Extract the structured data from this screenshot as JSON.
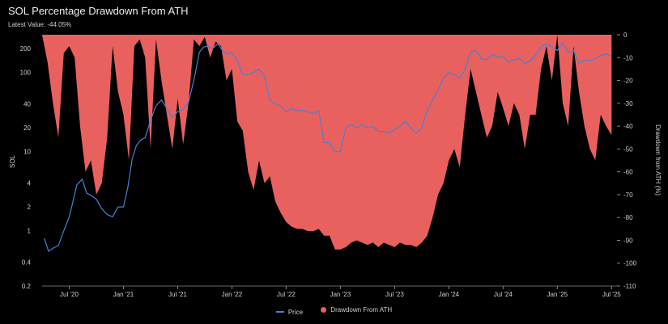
{
  "header": {
    "title": "SOL Percentage Drawdown From ATH",
    "latest_value": "Latest Value: -44.05%"
  },
  "colors": {
    "price": "#4a7fd4",
    "drawdown": "#e8615f",
    "background": "#000000"
  },
  "chart_data": {
    "type": "area",
    "title": "SOL Percentage Drawdown From ATH",
    "subtitle": "Latest Value: -44.05%",
    "x_tick_labels": [
      "Jul '20",
      "Jan '21",
      "Jul '21",
      "Jan '22",
      "Jul '22",
      "Jan '23",
      "Jul '23",
      "Jan '24",
      "Jul '24",
      "Jan '25",
      "Jul '25"
    ],
    "x_ticks": [
      2020.5,
      2021.0,
      2021.5,
      2022.0,
      2022.5,
      2023.0,
      2023.5,
      2024.0,
      2024.5,
      2025.0,
      2025.5
    ],
    "x_range": [
      2020.25,
      2025.55
    ],
    "y_left": {
      "label": "SOL",
      "scale": "log",
      "range": [
        0.2,
        300
      ],
      "tick_labels": [
        "0.2",
        "0.4",
        "1",
        "2",
        "4",
        "10",
        "20",
        "40",
        "100",
        "200"
      ],
      "ticks": [
        0.2,
        0.4,
        1,
        2,
        4,
        10,
        20,
        40,
        100,
        200
      ]
    },
    "y_right": {
      "label": "Drawdown from ATH (%)",
      "range": [
        -110,
        0
      ],
      "tick_labels": [
        "0",
        "-10",
        "-20",
        "-30",
        "-40",
        "-50",
        "-60",
        "-70",
        "-80",
        "-90",
        "-100",
        "-110"
      ],
      "ticks": [
        0,
        -10,
        -20,
        -30,
        -40,
        -50,
        -60,
        -70,
        -80,
        -90,
        -100,
        -110
      ]
    },
    "series": [
      {
        "name": "Price",
        "axis": "left",
        "type": "line",
        "x": [
          2020.27,
          2020.31,
          2020.35,
          2020.4,
          2020.45,
          2020.5,
          2020.53,
          2020.57,
          2020.62,
          2020.66,
          2020.7,
          2020.75,
          2020.8,
          2020.85,
          2020.9,
          2020.95,
          2021.0,
          2021.04,
          2021.08,
          2021.12,
          2021.16,
          2021.2,
          2021.25,
          2021.3,
          2021.35,
          2021.4,
          2021.45,
          2021.5,
          2021.55,
          2021.6,
          2021.65,
          2021.7,
          2021.74,
          2021.78,
          2021.82,
          2021.87,
          2021.92,
          2021.97,
          2022.0,
          2022.05,
          2022.1,
          2022.15,
          2022.2,
          2022.25,
          2022.3,
          2022.35,
          2022.4,
          2022.45,
          2022.5,
          2022.55,
          2022.6,
          2022.65,
          2022.7,
          2022.75,
          2022.8,
          2022.85,
          2022.9,
          2022.95,
          2023.0,
          2023.05,
          2023.1,
          2023.15,
          2023.2,
          2023.25,
          2023.3,
          2023.35,
          2023.4,
          2023.45,
          2023.5,
          2023.55,
          2023.6,
          2023.65,
          2023.7,
          2023.75,
          2023.8,
          2023.85,
          2023.9,
          2023.95,
          2024.0,
          2024.05,
          2024.1,
          2024.15,
          2024.2,
          2024.25,
          2024.3,
          2024.35,
          2024.4,
          2024.45,
          2024.5,
          2024.55,
          2024.6,
          2024.65,
          2024.7,
          2024.75,
          2024.8,
          2024.85,
          2024.9,
          2024.95,
          2025.0,
          2025.05,
          2025.1,
          2025.15,
          2025.2,
          2025.25,
          2025.3,
          2025.35,
          2025.4,
          2025.45,
          2025.5
        ],
        "values": [
          0.8,
          0.55,
          0.6,
          0.65,
          1.0,
          1.5,
          2.2,
          3.8,
          4.5,
          3.0,
          2.8,
          2.5,
          1.9,
          1.6,
          1.5,
          2.0,
          2.0,
          3.5,
          8.0,
          12,
          14,
          15,
          25,
          38,
          45,
          35,
          27,
          32,
          34,
          42,
          80,
          180,
          210,
          215,
          200,
          230,
          185,
          170,
          180,
          140,
          95,
          95,
          100,
          110,
          90,
          45,
          40,
          38,
          32,
          35,
          33,
          33,
          32,
          30,
          33,
          13,
          13,
          10,
          10,
          20,
          22,
          20,
          22,
          20,
          21,
          18,
          18,
          17,
          19,
          21,
          24,
          20,
          17,
          20,
          33,
          45,
          60,
          85,
          100,
          95,
          85,
          110,
          180,
          190,
          150,
          145,
          170,
          155,
          160,
          135,
          145,
          150,
          130,
          140,
          165,
          210,
          230,
          210,
          190,
          240,
          180,
          190,
          130,
          145,
          140,
          150,
          165,
          170,
          160
        ]
      },
      {
        "name": "Drawdown From ATH",
        "axis": "right",
        "type": "area",
        "x": [
          2020.25,
          2020.3,
          2020.35,
          2020.4,
          2020.45,
          2020.5,
          2020.55,
          2020.6,
          2020.65,
          2020.7,
          2020.75,
          2020.8,
          2020.85,
          2020.9,
          2020.95,
          2021.0,
          2021.05,
          2021.1,
          2021.15,
          2021.2,
          2021.25,
          2021.3,
          2021.35,
          2021.4,
          2021.45,
          2021.5,
          2021.55,
          2021.6,
          2021.65,
          2021.7,
          2021.75,
          2021.8,
          2021.85,
          2021.9,
          2021.95,
          2022.0,
          2022.05,
          2022.1,
          2022.15,
          2022.2,
          2022.25,
          2022.3,
          2022.35,
          2022.4,
          2022.45,
          2022.5,
          2022.55,
          2022.6,
          2022.65,
          2022.7,
          2022.75,
          2022.8,
          2022.85,
          2022.9,
          2022.95,
          2023.0,
          2023.05,
          2023.1,
          2023.15,
          2023.2,
          2023.25,
          2023.3,
          2023.35,
          2023.4,
          2023.45,
          2023.5,
          2023.55,
          2023.6,
          2023.65,
          2023.7,
          2023.75,
          2023.8,
          2023.85,
          2023.9,
          2023.95,
          2024.0,
          2024.05,
          2024.1,
          2024.15,
          2024.2,
          2024.25,
          2024.3,
          2024.35,
          2024.4,
          2024.45,
          2024.5,
          2024.55,
          2024.6,
          2024.65,
          2024.7,
          2024.75,
          2024.8,
          2024.85,
          2024.9,
          2024.95,
          2025.0,
          2025.05,
          2025.1,
          2025.15,
          2025.2,
          2025.25,
          2025.3,
          2025.35,
          2025.4,
          2025.45,
          2025.5
        ],
        "values": [
          0,
          -12,
          -30,
          -45,
          -8,
          -5,
          -10,
          -40,
          -60,
          -55,
          -70,
          -65,
          -45,
          -5,
          -25,
          -35,
          -55,
          -5,
          -2,
          -10,
          -50,
          -2,
          -20,
          -35,
          -50,
          -28,
          -48,
          -30,
          -2,
          -5,
          -1,
          -10,
          -3,
          -5,
          -20,
          -15,
          -38,
          -42,
          -60,
          -68,
          -55,
          -65,
          -62,
          -73,
          -78,
          -82,
          -84,
          -85,
          -85,
          -86,
          -86,
          -85,
          -88,
          -88,
          -94,
          -94,
          -93,
          -91,
          -90,
          -91,
          -92,
          -91,
          -93,
          -91,
          -92,
          -93,
          -91,
          -92,
          -92,
          -93,
          -91,
          -88,
          -80,
          -70,
          -65,
          -55,
          -50,
          -58,
          -35,
          -15,
          -25,
          -35,
          -45,
          -40,
          -25,
          -32,
          -40,
          -30,
          -35,
          -50,
          -35,
          -35,
          -15,
          -5,
          -20,
          0,
          -30,
          -40,
          -5,
          -25,
          -40,
          -50,
          -55,
          -35,
          -40,
          -44
        ]
      }
    ],
    "legend": {
      "position": "bottom-center",
      "entries": [
        "Price",
        "Drawdown From ATH"
      ]
    }
  }
}
